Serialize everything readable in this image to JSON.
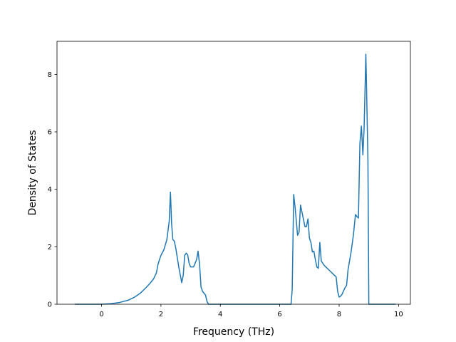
{
  "chart_data": {
    "type": "line",
    "title": "",
    "xlabel": "Frequency (THz)",
    "ylabel": "Density of States",
    "xlim": [
      -1.5,
      10.4
    ],
    "ylim": [
      0,
      9.15
    ],
    "xticks": [
      0,
      2,
      4,
      6,
      8,
      10
    ],
    "yticks": [
      0,
      2,
      4,
      6,
      8
    ],
    "grid": false,
    "legend": "none",
    "colors": {
      "line": "#1f77b4",
      "axes": "#000000",
      "background": "#ffffff"
    },
    "series": [
      {
        "x": [
          -0.9,
          -0.5,
          0.0,
          0.3,
          0.6,
          0.9,
          1.1,
          1.3,
          1.5,
          1.65,
          1.75,
          1.85,
          1.9,
          1.95,
          2.0,
          2.1,
          2.2,
          2.28,
          2.32,
          2.36,
          2.4,
          2.45,
          2.5,
          2.6,
          2.7,
          2.75,
          2.8,
          2.85,
          2.9,
          2.95,
          3.0,
          3.1,
          3.2,
          3.25,
          3.3,
          3.35,
          3.4,
          3.5,
          3.55,
          3.6,
          3.65,
          4.0,
          5.0,
          6.0,
          6.38,
          6.42,
          6.47,
          6.52,
          6.6,
          6.65,
          6.7,
          6.75,
          6.85,
          6.9,
          6.95,
          7.0,
          7.05,
          7.1,
          7.15,
          7.2,
          7.25,
          7.3,
          7.35,
          7.4,
          7.5,
          7.6,
          7.7,
          7.8,
          7.9,
          7.95,
          8.0,
          8.05,
          8.1,
          8.2,
          8.25,
          8.3,
          8.4,
          8.48,
          8.55,
          8.6,
          8.65,
          8.7,
          8.75,
          8.8,
          8.84,
          8.88,
          8.9,
          8.93,
          8.97,
          9.0,
          9.5,
          9.9
        ],
        "y": [
          0.0,
          0.0,
          0.0,
          0.02,
          0.06,
          0.14,
          0.24,
          0.38,
          0.58,
          0.75,
          0.88,
          1.1,
          1.38,
          1.55,
          1.7,
          1.9,
          2.25,
          2.9,
          3.9,
          2.8,
          2.25,
          2.2,
          1.95,
          1.3,
          0.75,
          1.0,
          1.7,
          1.78,
          1.72,
          1.42,
          1.3,
          1.3,
          1.55,
          1.85,
          1.4,
          0.6,
          0.45,
          0.32,
          0.1,
          0.0,
          0.0,
          0.0,
          0.0,
          0.0,
          0.0,
          0.5,
          3.82,
          3.35,
          2.4,
          2.5,
          3.45,
          3.2,
          2.7,
          2.7,
          2.97,
          2.3,
          2.15,
          1.82,
          1.85,
          1.55,
          1.3,
          1.25,
          2.15,
          1.5,
          1.35,
          1.25,
          1.15,
          1.05,
          0.95,
          0.45,
          0.25,
          0.28,
          0.35,
          0.58,
          0.65,
          1.2,
          1.8,
          2.4,
          3.12,
          3.05,
          3.0,
          5.6,
          6.2,
          5.2,
          6.1,
          7.8,
          8.7,
          7.2,
          5.0,
          0.0,
          0.0,
          0.0
        ]
      }
    ]
  }
}
